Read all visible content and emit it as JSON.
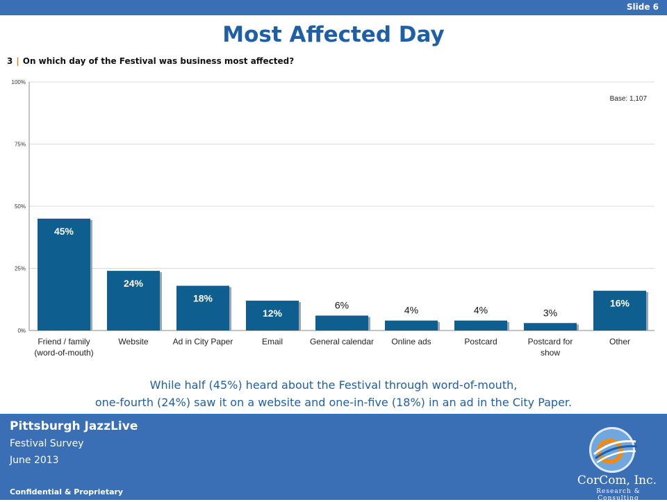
{
  "slide_label": "Slide 6",
  "title": "Most Affected Day",
  "question": {
    "number": "3",
    "separator": "|",
    "text": "On which day of the Festival was business most affected?"
  },
  "base_note": "Base: 1,107",
  "caption": {
    "line1": "While half (45%) heard about the Festival through word-of-mouth,",
    "line2": "one-fourth (24%) saw it on a website and one-in-five (18%) in an ad in the City Paper."
  },
  "footer": {
    "org": "Pittsburgh JazzLive",
    "line1": "Festival Survey",
    "line2": "June 2013",
    "confidential": "Confidential & Proprietary",
    "brand": "CorCom, Inc.",
    "tagline": "Research & Consulting"
  },
  "colors": {
    "bar": "#0e5f8f",
    "accent": "#1f5fa6",
    "band": "#3a6fb5",
    "separator": "#e07a10"
  },
  "chart_data": {
    "type": "bar",
    "categories": [
      [
        "Friend / family",
        "(word-of-mouth)"
      ],
      [
        "Website"
      ],
      [
        "Ad in City Paper"
      ],
      [
        "Email"
      ],
      [
        "General calendar"
      ],
      [
        "Online ads"
      ],
      [
        "Postcard"
      ],
      [
        "Postcard for",
        "show"
      ],
      [
        "Other"
      ]
    ],
    "values": [
      45,
      24,
      18,
      12,
      6,
      4,
      4,
      3,
      16
    ],
    "data_labels": [
      "45%",
      "24%",
      "18%",
      "12%",
      "6%",
      "4%",
      "4%",
      "3%",
      "16%"
    ],
    "ylim": [
      0,
      100
    ],
    "yticks": [
      0,
      25,
      50,
      75,
      100
    ],
    "ytick_labels": [
      "0%",
      "25%",
      "50%",
      "75%",
      "100%"
    ],
    "grid": true,
    "legend": false
  }
}
